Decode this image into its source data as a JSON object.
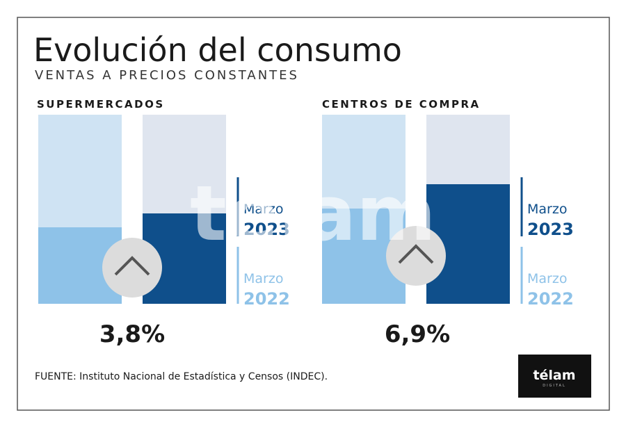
{
  "title": "Evolución del consumo",
  "subtitle": "VENTAS A PRECIOS CONSTANTES",
  "panels": [
    {
      "label": "SUPERMERCADOS",
      "change": "3,8%"
    },
    {
      "label": "CENTROS DE COMPRA",
      "change": "6,9%"
    }
  ],
  "legend": [
    {
      "month": "Marzo",
      "year": "2023"
    },
    {
      "month": "Marzo",
      "year": "2022"
    }
  ],
  "source": "FUENTE: Instituto Nacional de Estadística y Censos (INDEC).",
  "logo": {
    "name": "télam",
    "sub": "DIGITAL"
  },
  "watermark": "télam"
}
